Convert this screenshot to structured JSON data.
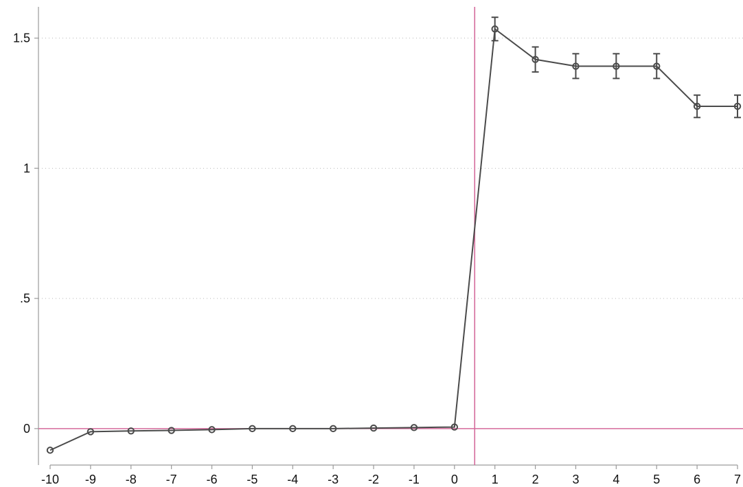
{
  "chart_data": {
    "type": "line",
    "title": "",
    "xlabel": "",
    "ylabel": "",
    "x": [
      -10,
      -9,
      -8,
      -7,
      -6,
      -5,
      -4,
      -3,
      -2,
      -1,
      0,
      1,
      2,
      3,
      4,
      5,
      6,
      7
    ],
    "series": [
      {
        "y": [
          -0.083,
          -0.012,
          -0.009,
          -0.007,
          -0.004,
          0.0,
          0.0,
          0.0,
          0.002,
          0.004,
          0.006,
          1.535,
          1.418,
          1.392,
          1.392,
          1.392,
          1.238,
          1.238
        ],
        "ci_low": [
          -0.09,
          -0.015,
          -0.012,
          -0.01,
          -0.006,
          -0.002,
          -0.002,
          -0.002,
          0.0,
          0.002,
          0.004,
          1.49,
          1.37,
          1.345,
          1.345,
          1.345,
          1.195,
          1.195
        ],
        "ci_high": [
          -0.076,
          -0.009,
          -0.006,
          -0.004,
          -0.002,
          0.002,
          0.002,
          0.002,
          0.004,
          0.006,
          0.008,
          1.58,
          1.466,
          1.44,
          1.44,
          1.44,
          1.281,
          1.281
        ]
      }
    ],
    "xlim": [
      -10,
      7
    ],
    "ylim": [
      -0.14,
      1.62
    ],
    "xticks": [
      "-10",
      "-9",
      "-8",
      "-7",
      "-6",
      "-5",
      "-4",
      "-3",
      "-2",
      "-1",
      "0",
      "1",
      "2",
      "3",
      "4",
      "5",
      "6",
      "7"
    ],
    "yticks": [
      {
        "value": 0,
        "label": "0"
      },
      {
        "value": 0.5,
        "label": ".5"
      },
      {
        "value": 1,
        "label": "1"
      },
      {
        "value": 1.5,
        "label": "1.5"
      }
    ],
    "vline_x": 0.5,
    "hline_y": 0,
    "grid": true,
    "colors": {
      "series": "#4a4a4a",
      "reference": "#d46a9b",
      "grid": "#b8b8b8",
      "axis": "#9a9a9a"
    }
  }
}
